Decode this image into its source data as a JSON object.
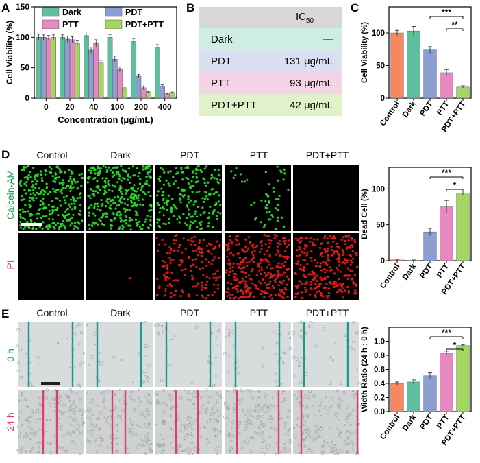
{
  "panel_letters": {
    "a": "A",
    "b": "B",
    "c": "C",
    "d": "D",
    "e": "E"
  },
  "groups": [
    "Control",
    "Dark",
    "PDT",
    "PTT",
    "PDT+PTT"
  ],
  "colors": {
    "control": "#f6875e",
    "dark": "#5fbf9e",
    "pdt": "#8b9fd3",
    "ptt": "#e888c1",
    "combo": "#a4d760",
    "green_cell": "#22d622",
    "red_cell": "#e01818",
    "teal_line": "#1a9a8a",
    "pink_line": "#e33a74",
    "calcein_text": "#1f9a56",
    "pi_text": "#e33a74"
  },
  "chart_data": [
    {
      "id": "A",
      "type": "bar",
      "categories": [
        "0",
        "20",
        "40",
        "100",
        "200",
        "400"
      ],
      "series": [
        {
          "name": "Dark",
          "values": [
            100,
            100,
            103,
            100,
            93,
            84
          ],
          "errors": [
            5,
            4,
            6,
            4,
            5,
            4
          ]
        },
        {
          "name": "PDT",
          "values": [
            100,
            97,
            79,
            64,
            36,
            20
          ],
          "errors": [
            4,
            5,
            5,
            5,
            3,
            2
          ]
        },
        {
          "name": "PTT",
          "values": [
            99,
            96,
            90,
            47,
            17,
            7
          ],
          "errors": [
            4,
            5,
            6,
            4,
            3,
            1
          ]
        },
        {
          "name": "PDT+PTT",
          "values": [
            100,
            90,
            58,
            16,
            10,
            9
          ],
          "errors": [
            4,
            4,
            4,
            1,
            1,
            1
          ]
        }
      ],
      "xlabel": "Concentration (μg/mL)",
      "ylabel": "Cell Viability (%)",
      "ylim": [
        0,
        150
      ],
      "yticks": [
        0,
        50,
        100,
        150
      ],
      "legend": "top"
    },
    {
      "id": "B",
      "type": "table",
      "header": [
        "",
        "IC50"
      ],
      "header_main": "IC",
      "header_sub": "50",
      "rows": [
        {
          "label": "Dark",
          "value": "—"
        },
        {
          "label": "PDT",
          "value": "131 μg/mL"
        },
        {
          "label": "PTT",
          "value": "93 μg/mL"
        },
        {
          "label": "PDT+PTT",
          "value": "42 μg/mL"
        }
      ]
    },
    {
      "id": "C",
      "type": "bar",
      "categories": [
        "Control",
        "Dark",
        "PDT",
        "PTT",
        "PDT+PTT"
      ],
      "values": [
        100,
        103,
        74,
        39,
        17
      ],
      "errors": [
        4,
        7,
        5,
        5,
        2
      ],
      "ylabel": "Cell Viability (%)",
      "ylim": [
        0,
        140
      ],
      "yticks": [
        0,
        50,
        100
      ],
      "significance": [
        {
          "from": "PDT",
          "to": "PDT+PTT",
          "label": "***"
        },
        {
          "from": "PTT",
          "to": "PDT+PTT",
          "label": "**"
        }
      ]
    },
    {
      "id": "D",
      "type": "bar",
      "categories": [
        "Control",
        "Dark",
        "PDT",
        "PTT",
        "PDT+PTT"
      ],
      "values": [
        1,
        0.5,
        40,
        75,
        94
      ],
      "errors": [
        1,
        0.5,
        5,
        9,
        3
      ],
      "ylabel": "Dead Cell (%)",
      "ylim": [
        0,
        130
      ],
      "yticks": [
        0,
        50,
        100
      ],
      "significance": [
        {
          "from": "PDT",
          "to": "PDT+PTT",
          "label": "***"
        },
        {
          "from": "PTT",
          "to": "PDT+PTT",
          "label": "*"
        }
      ]
    },
    {
      "id": "E",
      "type": "bar",
      "categories": [
        "Control",
        "Dark",
        "PDT",
        "PTT",
        "PDT+PTT"
      ],
      "values": [
        0.4,
        0.42,
        0.51,
        0.83,
        0.94
      ],
      "errors": [
        0.02,
        0.03,
        0.04,
        0.03,
        0.015
      ],
      "ylabel": "Width Ratio (24 h : 0 h)",
      "ylim": [
        0,
        1.2
      ],
      "yticks": [
        0.0,
        0.2,
        0.4,
        0.6,
        0.8,
        1.0
      ],
      "ytick_labels": [
        "0.0",
        "0.2",
        "0.4",
        "0.6",
        "0.8",
        "1.0"
      ],
      "significance": [
        {
          "from": "PDT",
          "to": "PDT+PTT",
          "label": "***"
        },
        {
          "from": "PTT",
          "to": "PDT+PTT",
          "label": "*"
        }
      ]
    }
  ],
  "microscopy_d": {
    "row_labels": [
      "Calcein-AM",
      "PI"
    ],
    "live_cell_counts": [
      300,
      330,
      210,
      55,
      0
    ],
    "dead_cell_counts": [
      0,
      1,
      175,
      300,
      280
    ]
  },
  "microscopy_e": {
    "row_labels": [
      "0 h",
      "24 h"
    ]
  }
}
